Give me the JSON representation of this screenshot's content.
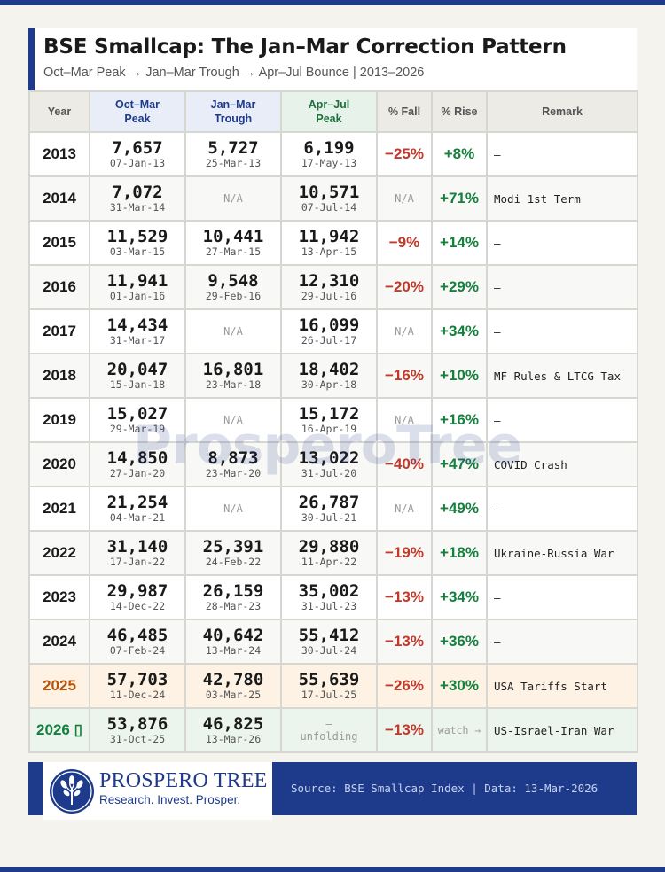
{
  "header": {
    "title": "BSE Smallcap: The Jan–Mar Correction Pattern",
    "subtitle": "Oct–Mar Peak → Jan–Mar Trough → Apr–Jul Bounce | 2013–2026"
  },
  "columns": {
    "year": "Year",
    "oct_mar_line1": "Oct–Mar",
    "oct_mar_line2": "Peak",
    "jan_mar_line1": "Jan–Mar",
    "jan_mar_line2": "Trough",
    "apr_jul_line1": "Apr–Jul",
    "apr_jul_line2": "Peak",
    "fall": "% Fall",
    "rise": "% Rise",
    "remark": "Remark"
  },
  "rows": [
    {
      "year": "2013",
      "peak": "7,657",
      "peak_date": "07-Jan-13",
      "trough": "5,727",
      "trough_date": "25-Mar-13",
      "apr": "6,199",
      "apr_date": "17-May-13",
      "fall": "−25%",
      "rise": "+8%",
      "remark": "–"
    },
    {
      "year": "2014",
      "peak": "7,072",
      "peak_date": "31-Mar-14",
      "trough": "N/A",
      "trough_date": "",
      "apr": "10,571",
      "apr_date": "07-Jul-14",
      "fall": "N/A",
      "rise": "+71%",
      "remark": "Modi 1st Term"
    },
    {
      "year": "2015",
      "peak": "11,529",
      "peak_date": "03-Mar-15",
      "trough": "10,441",
      "trough_date": "27-Mar-15",
      "apr": "11,942",
      "apr_date": "13-Apr-15",
      "fall": "−9%",
      "rise": "+14%",
      "remark": "–"
    },
    {
      "year": "2016",
      "peak": "11,941",
      "peak_date": "01-Jan-16",
      "trough": "9,548",
      "trough_date": "29-Feb-16",
      "apr": "12,310",
      "apr_date": "29-Jul-16",
      "fall": "−20%",
      "rise": "+29%",
      "remark": "–"
    },
    {
      "year": "2017",
      "peak": "14,434",
      "peak_date": "31-Mar-17",
      "trough": "N/A",
      "trough_date": "",
      "apr": "16,099",
      "apr_date": "26-Jul-17",
      "fall": "N/A",
      "rise": "+34%",
      "remark": "–"
    },
    {
      "year": "2018",
      "peak": "20,047",
      "peak_date": "15-Jan-18",
      "trough": "16,801",
      "trough_date": "23-Mar-18",
      "apr": "18,402",
      "apr_date": "30-Apr-18",
      "fall": "−16%",
      "rise": "+10%",
      "remark": "MF Rules & LTCG Tax"
    },
    {
      "year": "2019",
      "peak": "15,027",
      "peak_date": "29-Mar-19",
      "trough": "N/A",
      "trough_date": "",
      "apr": "15,172",
      "apr_date": "16-Apr-19",
      "fall": "N/A",
      "rise": "+16%",
      "remark": "–"
    },
    {
      "year": "2020",
      "peak": "14,850",
      "peak_date": "27-Jan-20",
      "trough": "8,873",
      "trough_date": "23-Mar-20",
      "apr": "13,022",
      "apr_date": "31-Jul-20",
      "fall": "−40%",
      "rise": "+47%",
      "remark": "COVID Crash"
    },
    {
      "year": "2021",
      "peak": "21,254",
      "peak_date": "04-Mar-21",
      "trough": "N/A",
      "trough_date": "",
      "apr": "26,787",
      "apr_date": "30-Jul-21",
      "fall": "N/A",
      "rise": "+49%",
      "remark": "–"
    },
    {
      "year": "2022",
      "peak": "31,140",
      "peak_date": "17-Jan-22",
      "trough": "25,391",
      "trough_date": "24-Feb-22",
      "apr": "29,880",
      "apr_date": "11-Apr-22",
      "fall": "−19%",
      "rise": "+18%",
      "remark": "Ukraine-Russia War"
    },
    {
      "year": "2023",
      "peak": "29,987",
      "peak_date": "14-Dec-22",
      "trough": "26,159",
      "trough_date": "28-Mar-23",
      "apr": "35,002",
      "apr_date": "31-Jul-23",
      "fall": "−13%",
      "rise": "+34%",
      "remark": "–"
    },
    {
      "year": "2024",
      "peak": "46,485",
      "peak_date": "07-Feb-24",
      "trough": "40,642",
      "trough_date": "13-Mar-24",
      "apr": "55,412",
      "apr_date": "30-Jul-24",
      "fall": "−13%",
      "rise": "+36%",
      "remark": "–"
    },
    {
      "year": "2025",
      "peak": "57,703",
      "peak_date": "11-Dec-24",
      "trough": "42,780",
      "trough_date": "03-Mar-25",
      "apr": "55,639",
      "apr_date": "17-Jul-25",
      "fall": "−26%",
      "rise": "+30%",
      "remark": "USA Tariffs Start"
    },
    {
      "year": "2026 ▯",
      "peak": "53,876",
      "peak_date": "31-Oct-25",
      "trough": "46,825",
      "trough_date": "13-Mar-26",
      "apr": "–",
      "apr_date": "unfolding",
      "fall": "−13%",
      "rise": "watch →",
      "remark": "US-Israel-Iran War"
    }
  ],
  "footer": {
    "brand": "PROSPERO TREE",
    "tagline": "Research. Invest. Prosper.",
    "source": "Source: BSE Smallcap Index  |  Data: 13-Mar-2026"
  },
  "watermark": "ProsperoTree",
  "colors": {
    "navy": "#1e3a8a",
    "fall_red": "#c0392b",
    "rise_green": "#15803d",
    "highlight_2025": "#fdf2e4",
    "highlight_2026": "#ecf4ee"
  }
}
